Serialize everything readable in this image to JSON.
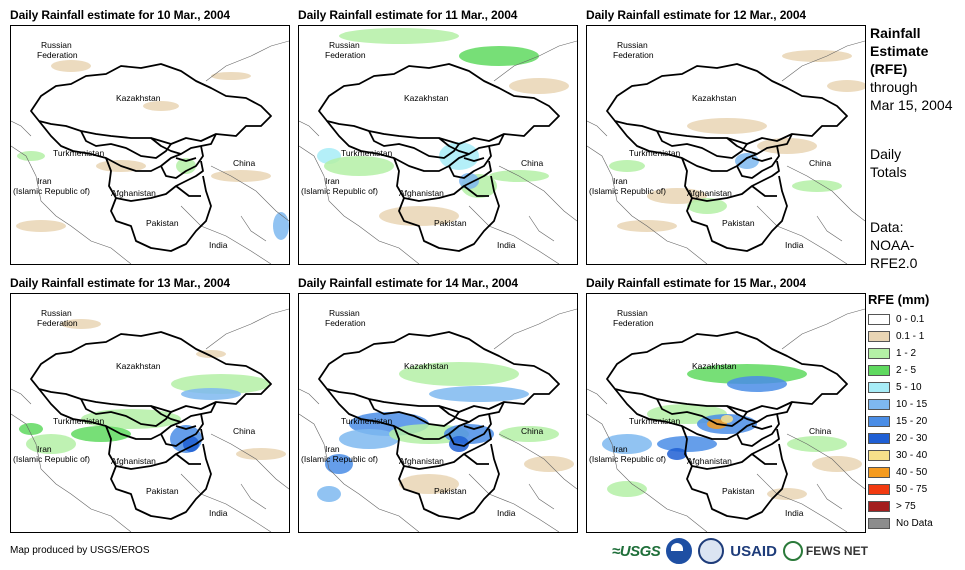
{
  "panels": [
    {
      "title": "Daily Rainfall estimate for 10 Mar., 2004"
    },
    {
      "title": "Daily Rainfall estimate for 11 Mar., 2004"
    },
    {
      "title": "Daily Rainfall estimate for 12 Mar., 2004"
    },
    {
      "title": "Daily Rainfall estimate for 13 Mar., 2004"
    },
    {
      "title": "Daily Rainfall estimate for 14 Mar., 2004"
    },
    {
      "title": "Daily Rainfall estimate for 15 Mar., 2004"
    }
  ],
  "map_labels": {
    "russia_1": "Russian",
    "russia_2": "Federation",
    "kazakhstan": "Kazakhstan",
    "turkmenistan": "Turkmenistan",
    "china": "China",
    "iran_1": "Iran",
    "iran_2": "(Islamic Republic of)",
    "afghanistan": "Afghanistan",
    "pakistan": "Pakistan",
    "india": "India"
  },
  "sidebar": {
    "heading_1": "Rainfall",
    "heading_2": "Estimate",
    "heading_3": "(RFE)",
    "through_1": "through",
    "through_2": "Mar 15, 2004",
    "totals_1": "Daily",
    "totals_2": "Totals",
    "data_1": "Data:",
    "data_2": "NOAA-",
    "data_3": "RFE2.0"
  },
  "legend": {
    "title": "RFE (mm)",
    "items": [
      {
        "label": "0 - 0.1",
        "color": "#ffffff"
      },
      {
        "label": "0.1 - 1",
        "color": "#e9d5b4"
      },
      {
        "label": "1 - 2",
        "color": "#b4f0a6"
      },
      {
        "label": "2 - 5",
        "color": "#5fd95f"
      },
      {
        "label": "5 - 10",
        "color": "#a7ecf7"
      },
      {
        "label": "10 - 15",
        "color": "#7eb8f0"
      },
      {
        "label": "15 - 20",
        "color": "#4a8de6"
      },
      {
        "label": "20 - 30",
        "color": "#1f5fd4"
      },
      {
        "label": "30 - 40",
        "color": "#f7e08a"
      },
      {
        "label": "40 - 50",
        "color": "#f59b1f"
      },
      {
        "label": "50 - 75",
        "color": "#f23a10"
      },
      {
        "label": "> 75",
        "color": "#a31d1d"
      },
      {
        "label": "No Data",
        "color": "#8c8c8c"
      }
    ]
  },
  "footer": {
    "credit": "Map produced by USGS/EROS",
    "logo_usgs": "≈USGS",
    "logo_usaid": "USAID",
    "logo_fews": "FEWS NET"
  }
}
